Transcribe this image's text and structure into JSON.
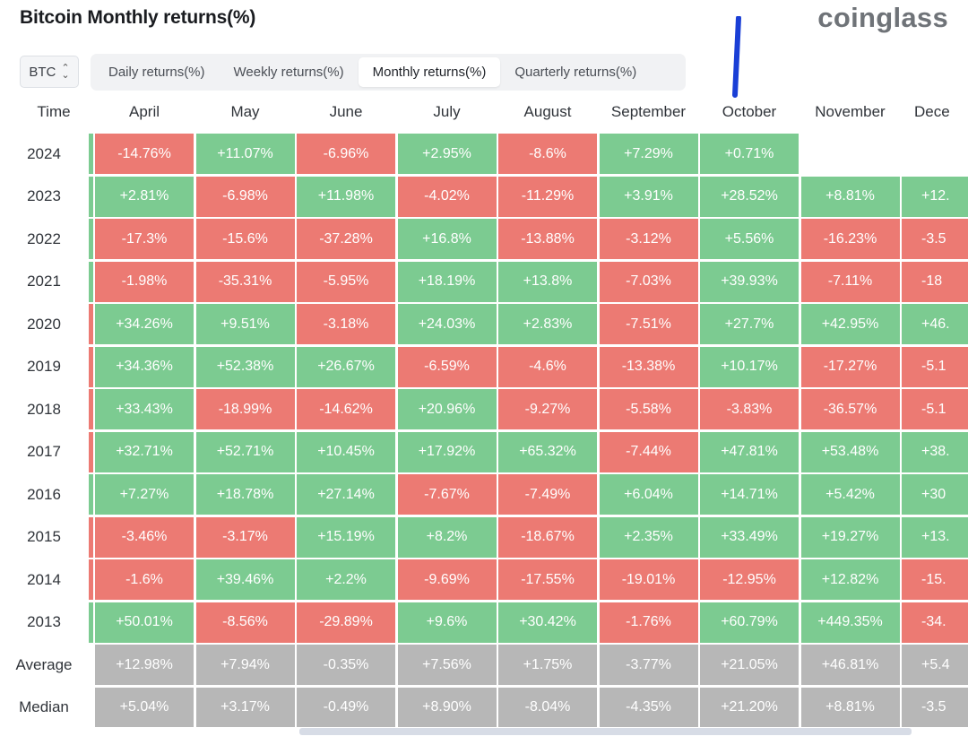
{
  "title": "Bitcoin Monthly returns(%)",
  "brand": "coinglass",
  "symbol": "BTC",
  "tabs": [
    {
      "label": "Daily returns(%)",
      "active": false
    },
    {
      "label": "Weekly returns(%)",
      "active": false
    },
    {
      "label": "Monthly returns(%)",
      "active": true
    },
    {
      "label": "Quarterly returns(%)",
      "active": false
    }
  ],
  "colors": {
    "positive": "#7ccb91",
    "negative": "#ec7a73",
    "summary": "#b7b7b7",
    "pen": "#1a3fd6"
  },
  "table": {
    "time_header": "Time",
    "columns": [
      "April",
      "May",
      "June",
      "July",
      "August",
      "September",
      "October",
      "November",
      "Dece"
    ],
    "rows": [
      {
        "label": "2024",
        "stripe": "pos",
        "values": [
          "-14.76%",
          "+11.07%",
          "-6.96%",
          "+2.95%",
          "-8.6%",
          "+7.29%",
          "+0.71%",
          "",
          ""
        ]
      },
      {
        "label": "2023",
        "stripe": "pos",
        "values": [
          "+2.81%",
          "-6.98%",
          "+11.98%",
          "-4.02%",
          "-11.29%",
          "+3.91%",
          "+28.52%",
          "+8.81%",
          "+12."
        ]
      },
      {
        "label": "2022",
        "stripe": "pos",
        "values": [
          "-17.3%",
          "-15.6%",
          "-37.28%",
          "+16.8%",
          "-13.88%",
          "-3.12%",
          "+5.56%",
          "-16.23%",
          "-3.5"
        ]
      },
      {
        "label": "2021",
        "stripe": "pos",
        "values": [
          "-1.98%",
          "-35.31%",
          "-5.95%",
          "+18.19%",
          "+13.8%",
          "-7.03%",
          "+39.93%",
          "-7.11%",
          "-18"
        ]
      },
      {
        "label": "2020",
        "stripe": "neg",
        "values": [
          "+34.26%",
          "+9.51%",
          "-3.18%",
          "+24.03%",
          "+2.83%",
          "-7.51%",
          "+27.7%",
          "+42.95%",
          "+46."
        ]
      },
      {
        "label": "2019",
        "stripe": "neg",
        "values": [
          "+34.36%",
          "+52.38%",
          "+26.67%",
          "-6.59%",
          "-4.6%",
          "-13.38%",
          "+10.17%",
          "-17.27%",
          "-5.1"
        ]
      },
      {
        "label": "2018",
        "stripe": "neg",
        "values": [
          "+33.43%",
          "-18.99%",
          "-14.62%",
          "+20.96%",
          "-9.27%",
          "-5.58%",
          "-3.83%",
          "-36.57%",
          "-5.1"
        ]
      },
      {
        "label": "2017",
        "stripe": "neg",
        "values": [
          "+32.71%",
          "+52.71%",
          "+10.45%",
          "+17.92%",
          "+65.32%",
          "-7.44%",
          "+47.81%",
          "+53.48%",
          "+38."
        ]
      },
      {
        "label": "2016",
        "stripe": "pos",
        "values": [
          "+7.27%",
          "+18.78%",
          "+27.14%",
          "-7.67%",
          "-7.49%",
          "+6.04%",
          "+14.71%",
          "+5.42%",
          "+30"
        ]
      },
      {
        "label": "2015",
        "stripe": "neg",
        "values": [
          "-3.46%",
          "-3.17%",
          "+15.19%",
          "+8.2%",
          "-18.67%",
          "+2.35%",
          "+33.49%",
          "+19.27%",
          "+13."
        ]
      },
      {
        "label": "2014",
        "stripe": "neg",
        "values": [
          "-1.6%",
          "+39.46%",
          "+2.2%",
          "-9.69%",
          "-17.55%",
          "-19.01%",
          "-12.95%",
          "+12.82%",
          "-15."
        ]
      },
      {
        "label": "2013",
        "stripe": "pos",
        "values": [
          "+50.01%",
          "-8.56%",
          "-29.89%",
          "+9.6%",
          "+30.42%",
          "-1.76%",
          "+60.79%",
          "+449.35%",
          "-34."
        ]
      }
    ],
    "summary": [
      {
        "label": "Average",
        "values": [
          "+12.98%",
          "+7.94%",
          "-0.35%",
          "+7.56%",
          "+1.75%",
          "-3.77%",
          "+21.05%",
          "+46.81%",
          "+5.4"
        ]
      },
      {
        "label": "Median",
        "values": [
          "+5.04%",
          "+3.17%",
          "-0.49%",
          "+8.90%",
          "-8.04%",
          "-4.35%",
          "+21.20%",
          "+8.81%",
          "-3.5"
        ]
      }
    ]
  }
}
